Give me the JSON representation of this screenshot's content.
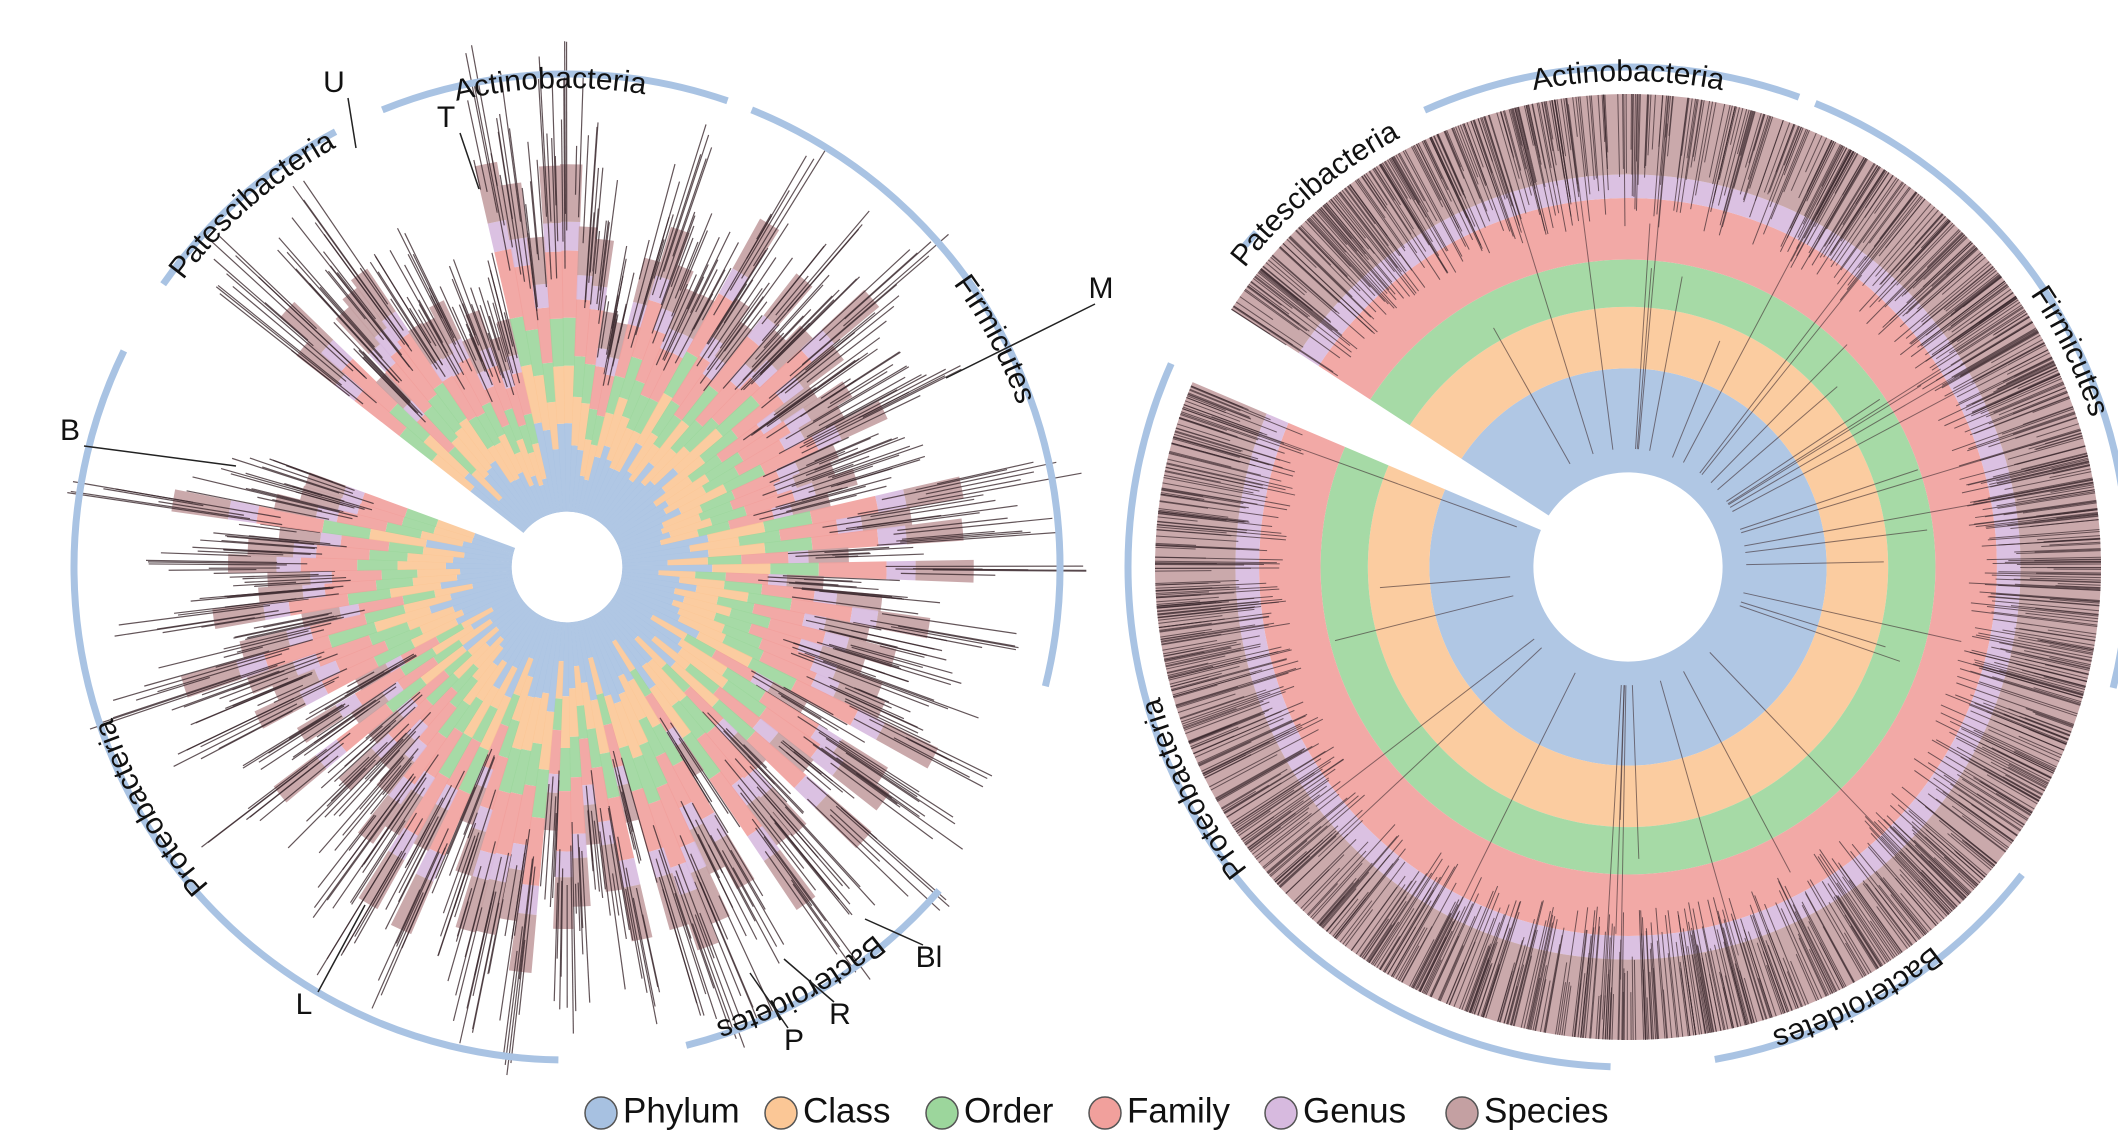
{
  "left_tree": {
    "phyla": [
      "Actinobacteria",
      "Patescibacteria",
      "Firmicutes",
      "Bacteroidetes",
      "Proteobacteria"
    ],
    "markers": [
      "U",
      "T",
      "M",
      "B",
      "L",
      "P",
      "R",
      "Bl"
    ]
  },
  "right_tree": {
    "phyla": [
      "Actinobacteria",
      "Patescibacteria",
      "Firmicutes",
      "Bacteroidetes",
      "Proteobacteria"
    ]
  },
  "legend": [
    "Phylum",
    "Class",
    "Order",
    "Family",
    "Genus",
    "Species"
  ]
}
